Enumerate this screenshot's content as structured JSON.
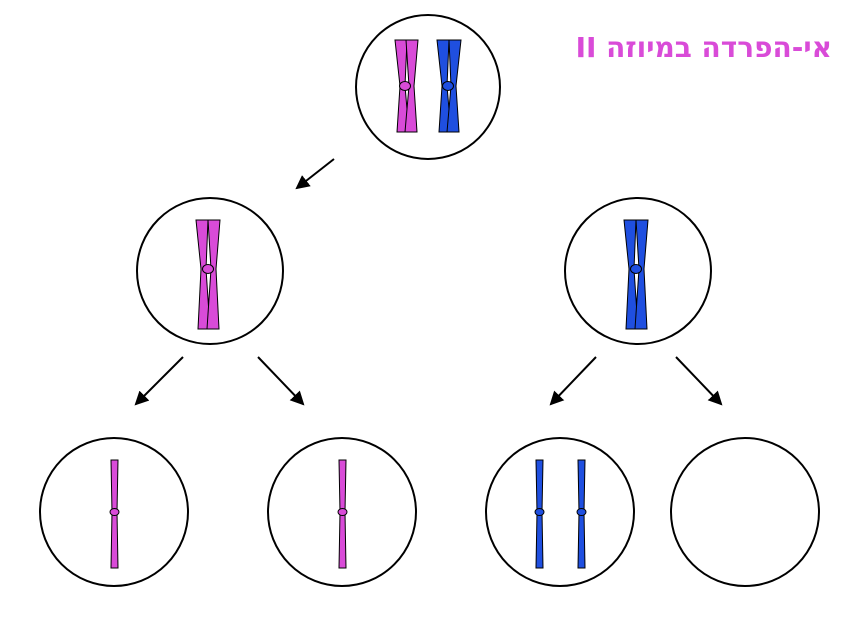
{
  "diagram": {
    "title": "אי-הפרדה במיוזה II",
    "colors": {
      "pink": "#d94bd8",
      "blue": "#1f4fe0",
      "outline": "#000000",
      "background": "#ffffff",
      "arrow": "#000000",
      "title": "#d94bd8"
    },
    "cells": [
      {
        "id": "top-cell",
        "content": "two-chromosomes",
        "colors": [
          "pink",
          "blue"
        ]
      },
      {
        "id": "left-middle-cell",
        "content": "one-chromosome",
        "colors": [
          "pink"
        ]
      },
      {
        "id": "right-middle-cell",
        "content": "one-chromosome",
        "colors": [
          "blue"
        ]
      },
      {
        "id": "bottom-cell-1",
        "content": "one-chromatid",
        "colors": [
          "pink"
        ]
      },
      {
        "id": "bottom-cell-2",
        "content": "one-chromatid",
        "colors": [
          "pink"
        ]
      },
      {
        "id": "bottom-cell-3",
        "content": "two-chromatids",
        "colors": [
          "blue",
          "blue"
        ]
      },
      {
        "id": "bottom-cell-4",
        "content": "empty",
        "colors": []
      }
    ],
    "arrows": [
      {
        "from": "top-cell",
        "to": "left-middle-cell"
      },
      {
        "from": "left-middle-cell",
        "to": "bottom-cell-1"
      },
      {
        "from": "left-middle-cell",
        "to": "bottom-cell-2"
      },
      {
        "from": "right-middle-cell",
        "to": "bottom-cell-3"
      },
      {
        "from": "right-middle-cell",
        "to": "bottom-cell-4"
      }
    ]
  }
}
